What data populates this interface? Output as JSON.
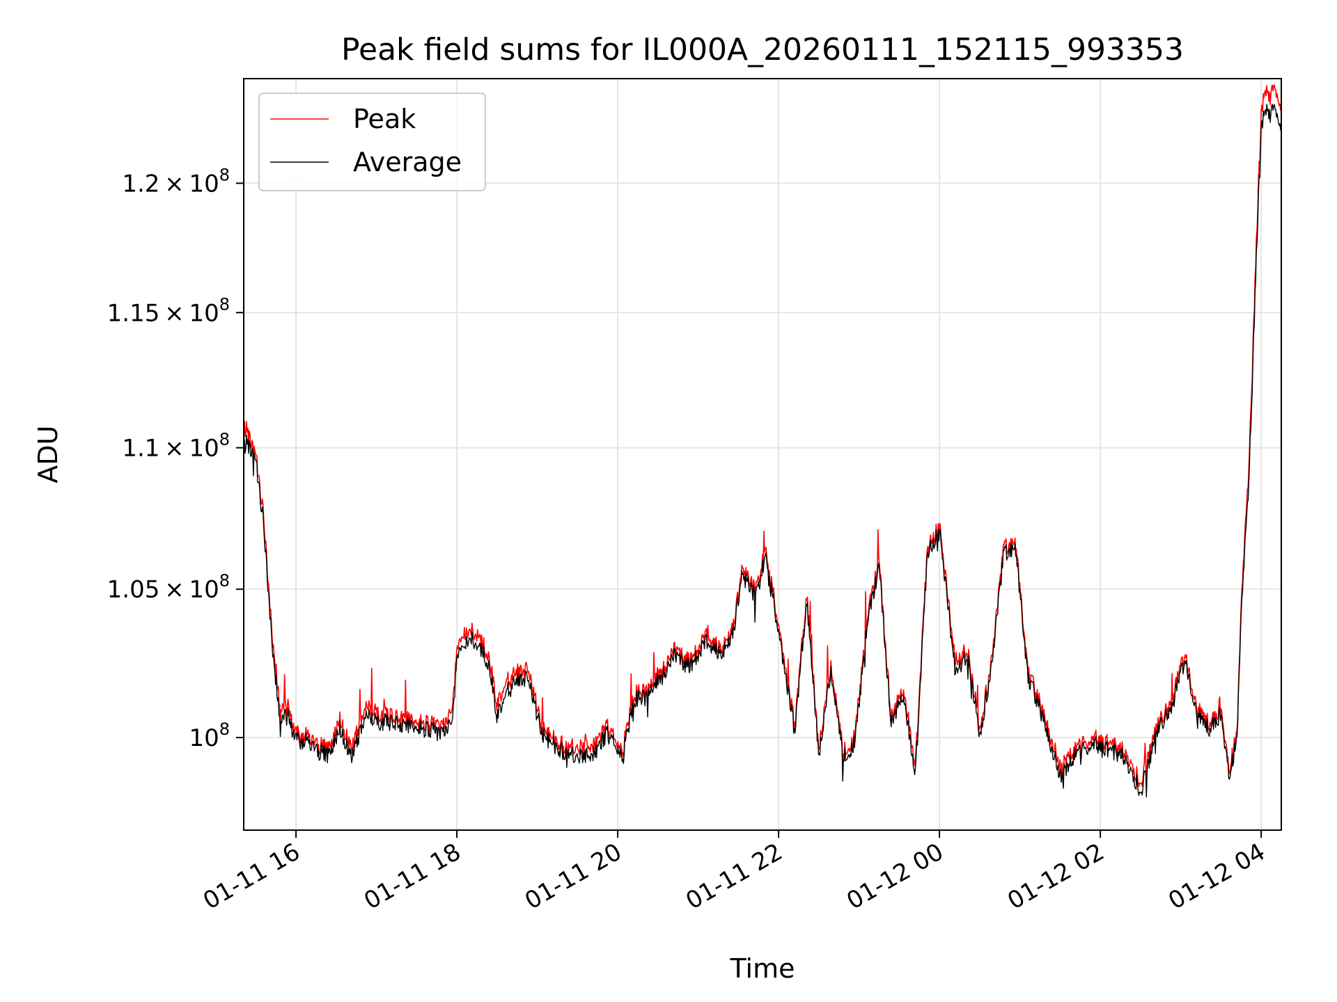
{
  "chart_data": {
    "type": "line",
    "title": "Peak field sums for IL000A_20260111_152115_993353",
    "xlabel": "Time",
    "ylabel": "ADU",
    "y_scale": "log",
    "grid": true,
    "legend_position": "top-left",
    "x_unit": "hours since 2026-01-11 00:00",
    "xlim": [
      15.35,
      28.25
    ],
    "ylim": [
      0.97,
      1.242
    ],
    "y_unit": "1e8 ADU",
    "x_ticks": [
      {
        "value": 16,
        "label": "01-11 16"
      },
      {
        "value": 18,
        "label": "01-11 18"
      },
      {
        "value": 20,
        "label": "01-11 20"
      },
      {
        "value": 22,
        "label": "01-11 22"
      },
      {
        "value": 24,
        "label": "01-12 00"
      },
      {
        "value": 26,
        "label": "01-12 02"
      },
      {
        "value": 28,
        "label": "01-12 04"
      }
    ],
    "y_ticks": [
      {
        "value": 1.0,
        "mantissa": "",
        "exponent": "8"
      },
      {
        "value": 1.05,
        "mantissa": "1.05",
        "exponent": "8"
      },
      {
        "value": 1.1,
        "mantissa": "1.1",
        "exponent": "8"
      },
      {
        "value": 1.15,
        "mantissa": "1.15",
        "exponent": "8"
      },
      {
        "value": 1.2,
        "mantissa": "1.2",
        "exponent": "8"
      }
    ],
    "series": [
      {
        "name": "Peak",
        "color": "#ff0000",
        "x": [
          15.35,
          15.4,
          15.5,
          15.6,
          15.7,
          15.8,
          15.9,
          16.0,
          16.1,
          16.25,
          16.4,
          16.55,
          16.7,
          16.85,
          17.0,
          17.2,
          17.4,
          17.6,
          17.8,
          17.95,
          18.0,
          18.2,
          18.4,
          18.5,
          18.7,
          18.9,
          19.05,
          19.1,
          19.3,
          19.5,
          19.7,
          19.9,
          20.05,
          20.2,
          20.4,
          20.55,
          20.7,
          20.9,
          21.1,
          21.3,
          21.45,
          21.55,
          21.7,
          21.85,
          22.0,
          22.2,
          22.35,
          22.5,
          22.65,
          22.8,
          22.95,
          23.1,
          23.25,
          23.4,
          23.55,
          23.7,
          23.85,
          24.0,
          24.2,
          24.35,
          24.5,
          24.65,
          24.8,
          24.95,
          25.1,
          25.3,
          25.5,
          25.7,
          25.9,
          26.1,
          26.3,
          26.5,
          26.7,
          26.9,
          27.05,
          27.2,
          27.35,
          27.5,
          27.6,
          27.7,
          27.75,
          27.85,
          27.95,
          28.0,
          28.05,
          28.1,
          28.15,
          28.25
        ],
        "values": [
          1.11,
          1.105,
          1.097,
          1.075,
          1.035,
          1.01,
          1.01,
          1.001,
          1.001,
          0.998,
          0.996,
          1.006,
          0.996,
          1.01,
          1.008,
          1.007,
          1.006,
          1.005,
          1.003,
          1.01,
          1.031,
          1.036,
          1.028,
          1.01,
          1.023,
          1.022,
          1.003,
          1.002,
          0.998,
          0.996,
          0.998,
          1.004,
          0.995,
          1.014,
          1.018,
          1.022,
          1.03,
          1.025,
          1.034,
          1.03,
          1.038,
          1.059,
          1.05,
          1.064,
          1.037,
          1.004,
          1.048,
          0.996,
          1.025,
          0.996,
          1.0,
          1.04,
          1.06,
          1.006,
          1.017,
          0.99,
          1.064,
          1.072,
          1.024,
          1.03,
          1.003,
          1.025,
          1.065,
          1.065,
          1.022,
          1.008,
          0.99,
          0.996,
          1.0,
          0.998,
          0.996,
          0.985,
          1.004,
          1.013,
          1.028,
          1.01,
          1.005,
          1.01,
          0.99,
          1.001,
          1.045,
          1.095,
          1.185,
          1.228,
          1.238,
          1.234,
          1.24,
          1.23
        ]
      },
      {
        "name": "Average",
        "color": "#000000",
        "x": [
          15.35,
          15.4,
          15.5,
          15.6,
          15.7,
          15.8,
          15.9,
          16.0,
          16.1,
          16.25,
          16.4,
          16.55,
          16.7,
          16.85,
          17.0,
          17.2,
          17.4,
          17.6,
          17.8,
          17.95,
          18.0,
          18.2,
          18.4,
          18.5,
          18.7,
          18.9,
          19.05,
          19.1,
          19.3,
          19.5,
          19.7,
          19.9,
          20.05,
          20.2,
          20.4,
          20.55,
          20.7,
          20.9,
          21.1,
          21.3,
          21.45,
          21.55,
          21.7,
          21.85,
          22.0,
          22.2,
          22.35,
          22.5,
          22.65,
          22.8,
          22.95,
          23.1,
          23.25,
          23.4,
          23.55,
          23.7,
          23.85,
          24.0,
          24.2,
          24.35,
          24.5,
          24.65,
          24.8,
          24.95,
          25.1,
          25.3,
          25.5,
          25.7,
          25.9,
          26.1,
          26.3,
          26.5,
          26.7,
          26.9,
          27.05,
          27.2,
          27.35,
          27.5,
          27.6,
          27.7,
          27.75,
          27.85,
          27.95,
          28.0,
          28.05,
          28.1,
          28.15,
          28.25
        ],
        "values": [
          1.103,
          1.101,
          1.095,
          1.072,
          1.032,
          1.006,
          1.007,
          0.999,
          0.999,
          0.996,
          0.994,
          1.003,
          0.993,
          1.007,
          1.005,
          1.005,
          1.004,
          1.003,
          1.001,
          1.006,
          1.028,
          1.033,
          1.025,
          1.006,
          1.02,
          1.019,
          1.001,
          1.0,
          0.996,
          0.993,
          0.995,
          1.002,
          0.993,
          1.012,
          1.016,
          1.02,
          1.028,
          1.023,
          1.032,
          1.028,
          1.036,
          1.057,
          1.048,
          1.062,
          1.035,
          1.002,
          1.046,
          0.994,
          1.023,
          0.994,
          0.998,
          1.038,
          1.058,
          1.004,
          1.015,
          0.987,
          1.062,
          1.07,
          1.021,
          1.028,
          1.001,
          1.023,
          1.063,
          1.063,
          1.02,
          1.006,
          0.987,
          0.994,
          0.998,
          0.996,
          0.994,
          0.982,
          1.002,
          1.011,
          1.026,
          1.008,
          1.003,
          1.008,
          0.988,
          0.999,
          1.042,
          1.09,
          1.18,
          1.222,
          1.23,
          1.227,
          1.232,
          1.222
        ]
      }
    ]
  }
}
